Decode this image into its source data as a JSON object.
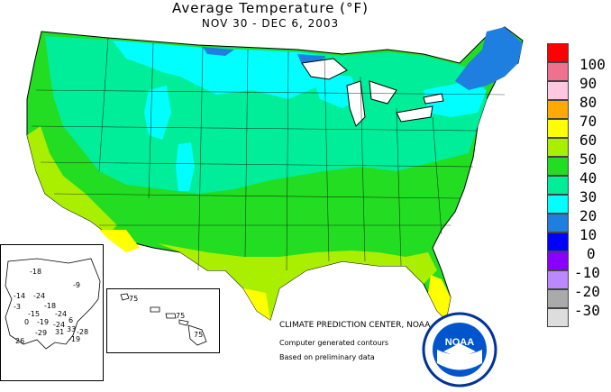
{
  "title": "Average Temperature (°F)",
  "subtitle": "NOV 30 - DEC  6, 2003",
  "legend": {
    "items": [
      {
        "label": "100",
        "color": "#ff0000"
      },
      {
        "label": "90",
        "color": "#f07090"
      },
      {
        "label": "80",
        "color": "#ffc8e0"
      },
      {
        "label": "70",
        "color": "#ffaa00"
      },
      {
        "label": "60",
        "color": "#ffff00"
      },
      {
        "label": "50",
        "color": "#aaee00"
      },
      {
        "label": "40",
        "color": "#22dd22"
      },
      {
        "label": "30",
        "color": "#00ee99"
      },
      {
        "label": "20",
        "color": "#00ffff"
      },
      {
        "label": "10",
        "color": "#1f7fe0"
      },
      {
        "label": "0",
        "color": "#0000ff"
      },
      {
        "label": "-10",
        "color": "#8800ff"
      },
      {
        "label": "-20",
        "color": "#bb88ff"
      },
      {
        "label": "-30",
        "color": "#aaaaaa"
      },
      {
        "label": "",
        "color": "#dddddd"
      }
    ]
  },
  "credits": {
    "line1": "CLIMATE PREDICTION CENTER, NOAA",
    "line2": "Computer generated contours",
    "line3": "Based on preliminary data"
  },
  "logo": {
    "text": "NOAA"
  },
  "alaska_labels": [
    "-18",
    "-14",
    "-24",
    "-9",
    "-18",
    "-3",
    "-15",
    "-24",
    "6",
    "0",
    "-19",
    "-24",
    "33",
    "26",
    "-29",
    "31",
    "-19",
    "-28"
  ],
  "hawaii_labels": [
    "75",
    "75",
    "75"
  ]
}
